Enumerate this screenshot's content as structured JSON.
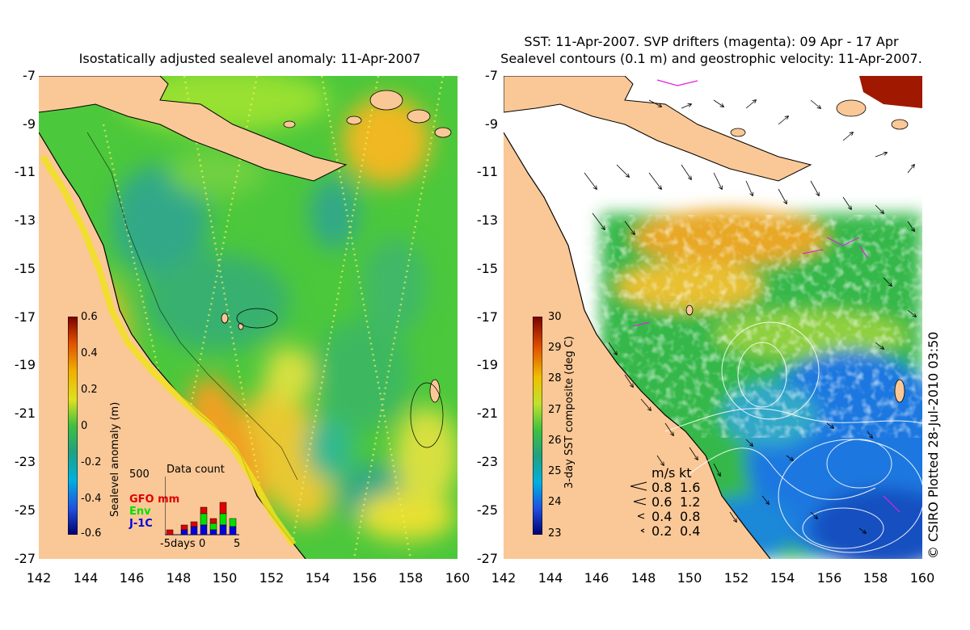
{
  "left_panel": {
    "title": "Isostatically adjusted sealevel anomaly: 11-Apr-2007",
    "colorbar": {
      "label": "Sealevel anomaly (m)",
      "ticks": [
        "0.6",
        "0.4",
        "0.2",
        "0",
        "-0.2",
        "-0.4",
        "-0.6"
      ],
      "range": [
        -0.6,
        0.6
      ]
    },
    "data_count": {
      "title": "Data count",
      "ymax_label": "500",
      "legend": [
        {
          "label": "GFO mm",
          "color": "#e00000"
        },
        {
          "label": "Env",
          "color": "#00e000"
        },
        {
          "label": "J-1C",
          "color": "#0000e0"
        }
      ],
      "xlabels": [
        "-5days",
        "0",
        "5"
      ]
    }
  },
  "right_panel": {
    "title_line1": "SST: 11-Apr-2007. SVP drifters (magenta): 09 Apr - 17 Apr",
    "title_line2": "Sealevel contours (0.1 m) and geostrophic velocity: 11-Apr-2007.",
    "colorbar": {
      "label": "3-day SST composite (deg C)",
      "ticks": [
        "30",
        "29",
        "28",
        "27",
        "26",
        "25",
        "24",
        "23"
      ],
      "range": [
        23,
        30
      ]
    },
    "speed_legend": {
      "headers": [
        "m/s",
        "kt"
      ],
      "rows": [
        {
          "ms": "0.8",
          "kt": "1.6"
        },
        {
          "ms": "0.6",
          "kt": "1.2"
        },
        {
          "ms": "0.4",
          "kt": "0.8"
        },
        {
          "ms": "0.2",
          "kt": "0.4"
        }
      ]
    },
    "credit": "© CSIRO Plotted 28-Jul-2010 03:50"
  },
  "axes": {
    "y_labels": [
      "-7",
      "-9",
      "-11",
      "-13",
      "-15",
      "-17",
      "-19",
      "-21",
      "-23",
      "-25",
      "-27"
    ],
    "x_labels": [
      "142",
      "144",
      "146",
      "148",
      "150",
      "152",
      "154",
      "156",
      "158",
      "160"
    ],
    "lat_range": [
      -27,
      -7
    ],
    "lon_range": [
      142,
      160
    ]
  },
  "colors": {
    "land": "#fac896",
    "sea_base": "#4cc83c",
    "high_anom": "#f0c020",
    "low_anom": "#30b080",
    "sst_warm": "#e8a020",
    "sst_cool": "#1e6ee0",
    "missing": "#ffffff"
  }
}
